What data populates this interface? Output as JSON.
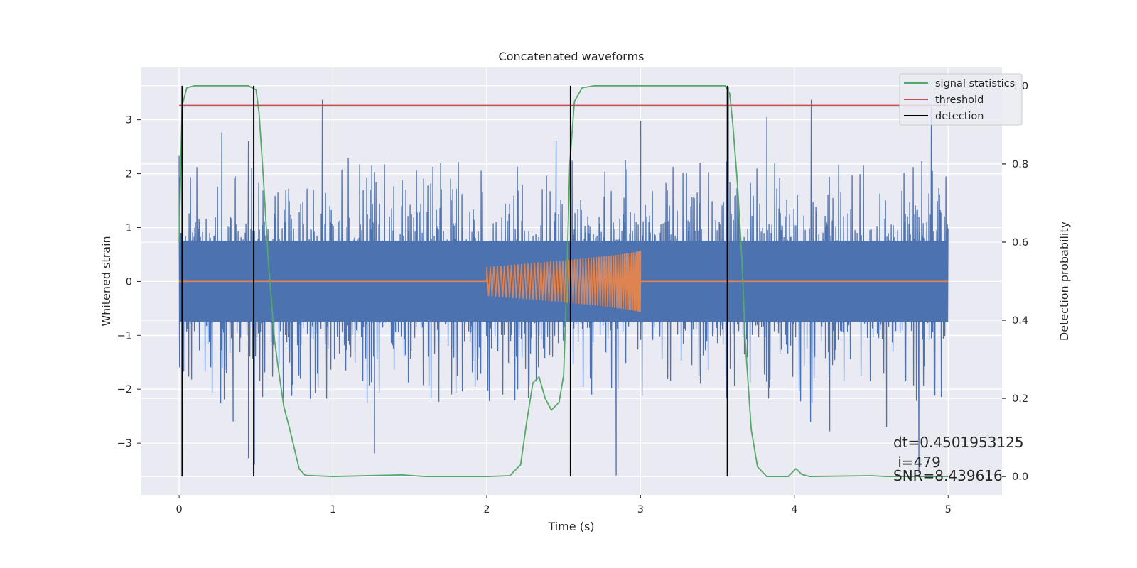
{
  "chart_data": {
    "type": "line",
    "title": "Concatenated waveforms",
    "xlabel": "Time (s)",
    "ylabel": "Whitened strain",
    "y2label": "Detection probability",
    "xlim": [
      -0.25,
      5.35
    ],
    "ylim": [
      -3.96,
      3.97
    ],
    "y2lim": [
      -0.047,
      1.047
    ],
    "x_ticks": [
      0,
      1,
      2,
      3,
      4,
      5
    ],
    "x_tick_labels": [
      "0",
      "1",
      "2",
      "3",
      "4",
      "5"
    ],
    "y_ticks": [
      -3,
      -2,
      -1,
      0,
      1,
      2,
      3
    ],
    "y_tick_labels": [
      "−3",
      "−2",
      "−1",
      "0",
      "1",
      "2",
      "3"
    ],
    "y2_ticks": [
      0.0,
      0.2,
      0.4,
      0.6,
      0.8,
      1.0
    ],
    "y2_tick_labels": [
      "0.0",
      "0.2",
      "0.4",
      "0.6",
      "0.8",
      "1.0"
    ],
    "grid": true,
    "legend_position": "top-right",
    "legend": [
      "signal statistics",
      "threshold",
      "detection"
    ],
    "colors": {
      "background": "#eaeaf2",
      "strain": "#4c72b0",
      "template": "#dd8452",
      "signal_statistics": "#55a868",
      "threshold": "#c44e52",
      "detection": "#000000"
    },
    "series": [
      {
        "kind": "noise",
        "x_range": [
          0,
          5
        ],
        "core_amplitude": 0.72,
        "typical_max": 2.3,
        "peaks": [
          {
            "x": 0.0,
            "y": 2.33
          },
          {
            "x": 0.03,
            "y": -1.67
          },
          {
            "x": 0.35,
            "y": -2.6
          },
          {
            "x": 0.45,
            "y": 2.6
          },
          {
            "x": 0.45,
            "y": -3.28
          },
          {
            "x": 0.49,
            "y": -3.4
          },
          {
            "x": 0.93,
            "y": 3.37
          },
          {
            "x": 1.27,
            "y": -3.19
          },
          {
            "x": 2.45,
            "y": 2.61
          },
          {
            "x": 2.84,
            "y": -3.6
          },
          {
            "x": 3.0,
            "y": 2.98
          },
          {
            "x": 3.57,
            "y": 3.61
          },
          {
            "x": 3.82,
            "y": 3.05
          },
          {
            "x": 4.11,
            "y": 3.37
          },
          {
            "x": 4.23,
            "y": -2.78
          },
          {
            "x": 4.6,
            "y": -2.7
          },
          {
            "x": 4.81,
            "y": -3.55
          },
          {
            "x": 4.89,
            "y": 3.25
          }
        ]
      },
      {
        "kind": "chirp",
        "x_range": [
          0,
          5
        ],
        "active_range": [
          2.0,
          3.0
        ],
        "amplitude_start": 0.27,
        "amplitude_end": 0.57,
        "cycles": 58
      },
      {
        "name": "signal statistics",
        "axis": "y2",
        "points": [
          [
            0.0,
            0.6
          ],
          [
            0.02,
            0.95
          ],
          [
            0.05,
            0.995
          ],
          [
            0.1,
            1.0
          ],
          [
            0.3,
            1.0
          ],
          [
            0.45,
            1.0
          ],
          [
            0.5,
            0.99
          ],
          [
            0.52,
            0.93
          ],
          [
            0.55,
            0.75
          ],
          [
            0.58,
            0.55
          ],
          [
            0.6,
            0.45
          ],
          [
            0.62,
            0.35
          ],
          [
            0.64,
            0.29
          ],
          [
            0.68,
            0.18
          ],
          [
            0.72,
            0.12
          ],
          [
            0.75,
            0.07
          ],
          [
            0.78,
            0.02
          ],
          [
            0.82,
            0.003
          ],
          [
            1.0,
            0.0
          ],
          [
            1.45,
            0.004
          ],
          [
            1.6,
            0.0
          ],
          [
            2.0,
            0.0
          ],
          [
            2.15,
            0.002
          ],
          [
            2.22,
            0.03
          ],
          [
            2.26,
            0.14
          ],
          [
            2.3,
            0.24
          ],
          [
            2.34,
            0.255
          ],
          [
            2.38,
            0.2
          ],
          [
            2.42,
            0.17
          ],
          [
            2.47,
            0.19
          ],
          [
            2.5,
            0.26
          ],
          [
            2.52,
            0.5
          ],
          [
            2.54,
            0.8
          ],
          [
            2.57,
            0.96
          ],
          [
            2.62,
            0.995
          ],
          [
            2.7,
            1.0
          ],
          [
            3.55,
            1.0
          ],
          [
            3.58,
            0.98
          ],
          [
            3.6,
            0.9
          ],
          [
            3.63,
            0.75
          ],
          [
            3.66,
            0.55
          ],
          [
            3.68,
            0.35
          ],
          [
            3.72,
            0.12
          ],
          [
            3.76,
            0.025
          ],
          [
            3.82,
            0.0
          ],
          [
            3.96,
            0.0
          ],
          [
            4.01,
            0.02
          ],
          [
            4.05,
            0.005
          ],
          [
            4.1,
            0.0
          ],
          [
            4.5,
            0.002
          ],
          [
            4.6,
            0.0
          ],
          [
            5.0,
            0.0
          ]
        ]
      },
      {
        "name": "threshold",
        "axis": "y2",
        "x": [
          0,
          5
        ],
        "value": 0.95
      },
      {
        "name": "detection",
        "axis": "y2",
        "x_positions": [
          0.02,
          0.485,
          2.545,
          3.565
        ],
        "y_range": [
          0.0,
          1.0
        ]
      }
    ],
    "annotations": [
      "dt=0.4501953125",
      " i=479",
      "SNR=8.439616"
    ]
  }
}
